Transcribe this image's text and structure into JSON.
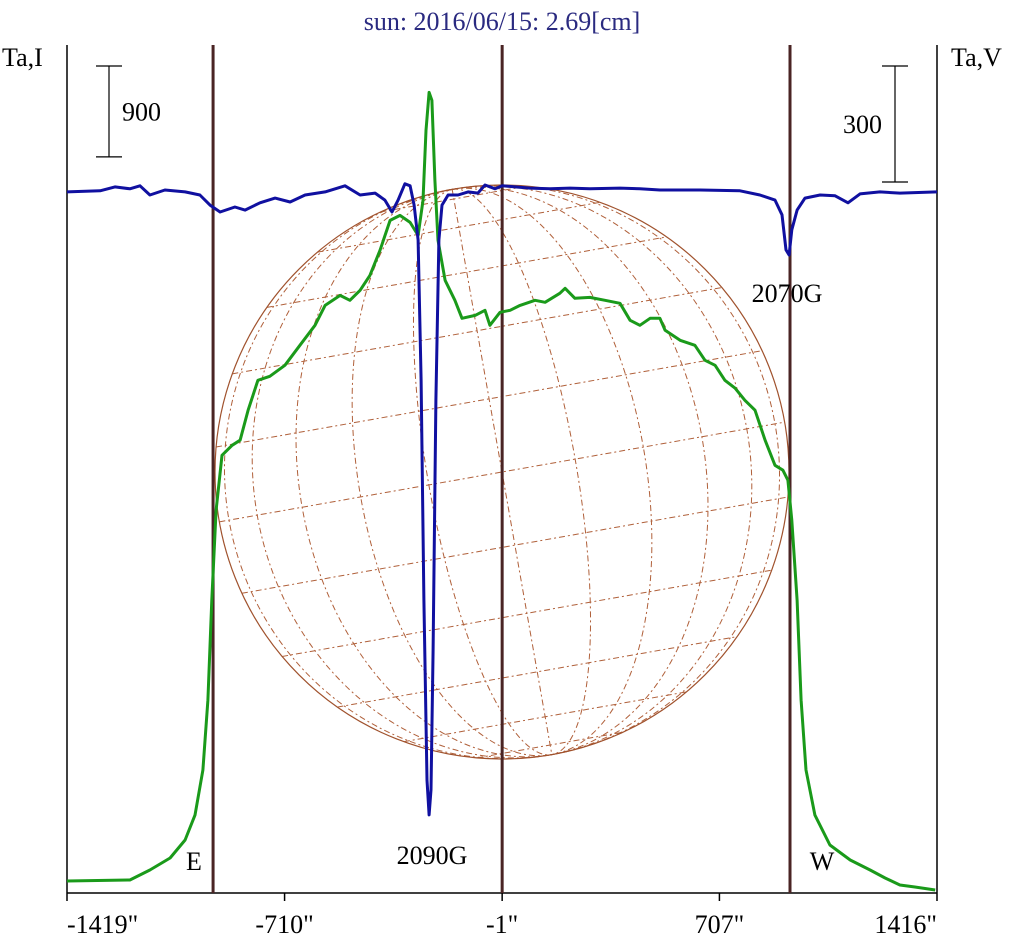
{
  "chart_data": {
    "type": "line",
    "title": "sun: 2016/06/15: 2.69[cm]",
    "ylabel": "Ta,I",
    "y2label": "Ta,V",
    "xlim": [
      -1419,
      1416
    ],
    "xticks": [
      {
        "value": -1419,
        "label": "-1419\""
      },
      {
        "value": -710,
        "label": "-710\""
      },
      {
        "value": -1,
        "label": "-1\""
      },
      {
        "value": 707,
        "label": "707\""
      },
      {
        "value": 1416,
        "label": "1416\""
      }
    ],
    "ylim": [
      0,
      8400
    ],
    "y2lim": [
      -1813,
      380
    ],
    "scale_bars": [
      {
        "value": 900,
        "axis": "y"
      },
      {
        "value": 300,
        "axis": "y2"
      }
    ],
    "limb_lines": [
      -943,
      -1,
      937
    ],
    "annotations": [
      "2090G",
      "2070G",
      "E",
      "W"
    ],
    "series": [
      {
        "color": "#1a9a1a",
        "axis": "y",
        "x": [
          -1419,
          -1214,
          -1149,
          -1083,
          -1034,
          -1002,
          -976,
          -960,
          -947,
          -933,
          -914,
          -881,
          -855,
          -829,
          -797,
          -758,
          -709,
          -660,
          -611,
          -578,
          -529,
          -497,
          -464,
          -432,
          -399,
          -366,
          -334,
          -301,
          -275,
          -259,
          -249,
          -239,
          -230,
          -220,
          -210,
          -187,
          -155,
          -132,
          -89,
          -57,
          -41,
          -8,
          25,
          57,
          106,
          139,
          187,
          204,
          236,
          285,
          334,
          383,
          416,
          448,
          481,
          513,
          530,
          579,
          627,
          660,
          693,
          725,
          758,
          790,
          823,
          856,
          888,
          914,
          930,
          943,
          960,
          973,
          989,
          1018,
          1067,
          1133,
          1198,
          1247,
          1295,
          1344,
          1410
        ],
        "values": [
          119,
          129,
          228,
          347,
          525,
          772,
          1218,
          1911,
          2901,
          3792,
          4336,
          4435,
          4485,
          4782,
          5079,
          5118,
          5227,
          5425,
          5623,
          5821,
          5920,
          5871,
          5970,
          6118,
          6366,
          6663,
          6712,
          6643,
          6514,
          6861,
          7554,
          7930,
          7851,
          7059,
          6465,
          6069,
          5871,
          5693,
          5722,
          5772,
          5623,
          5752,
          5772,
          5821,
          5871,
          5851,
          5940,
          5990,
          5891,
          5900,
          5871,
          5841,
          5673,
          5623,
          5693,
          5693,
          5574,
          5475,
          5425,
          5277,
          5227,
          5079,
          5000,
          4881,
          4782,
          4485,
          4237,
          4188,
          4089,
          3693,
          2901,
          1911,
          1218,
          772,
          475,
          327,
          228,
          149,
          79,
          59,
          30
        ]
      },
      {
        "color": "#1010a0",
        "axis": "y2",
        "x": [
          -1419,
          -1311,
          -1263,
          -1214,
          -1181,
          -1149,
          -1100,
          -1034,
          -986,
          -953,
          -920,
          -872,
          -839,
          -790,
          -741,
          -692,
          -643,
          -578,
          -513,
          -464,
          -415,
          -383,
          -360,
          -340,
          -318,
          -301,
          -288,
          -275,
          -265,
          -256,
          -246,
          -239,
          -233,
          -226,
          -217,
          -207,
          -197,
          -177,
          -145,
          -112,
          -80,
          -57,
          -24,
          -1,
          41,
          90,
          155,
          220,
          285,
          383,
          448,
          513,
          644,
          774,
          839,
          888,
          911,
          924,
          934,
          943,
          960,
          986,
          1035,
          1084,
          1126,
          1165,
          1230,
          1295,
          1416
        ],
        "values": [
          0,
          3,
          13,
          8,
          16,
          -8,
          5,
          0,
          -8,
          -34,
          -52,
          -39,
          -47,
          -28,
          -16,
          -26,
          -8,
          0,
          16,
          -8,
          -3,
          -21,
          -52,
          -21,
          21,
          16,
          -34,
          -124,
          -486,
          -1055,
          -1521,
          -1611,
          -1546,
          -1184,
          -538,
          -124,
          -34,
          -8,
          -8,
          0,
          -3,
          18,
          8,
          16,
          13,
          10,
          8,
          10,
          8,
          10,
          8,
          5,
          5,
          3,
          -8,
          -21,
          -59,
          -150,
          -163,
          -98,
          -47,
          -16,
          -8,
          -10,
          -28,
          -5,
          0,
          -3,
          0
        ]
      }
    ]
  }
}
